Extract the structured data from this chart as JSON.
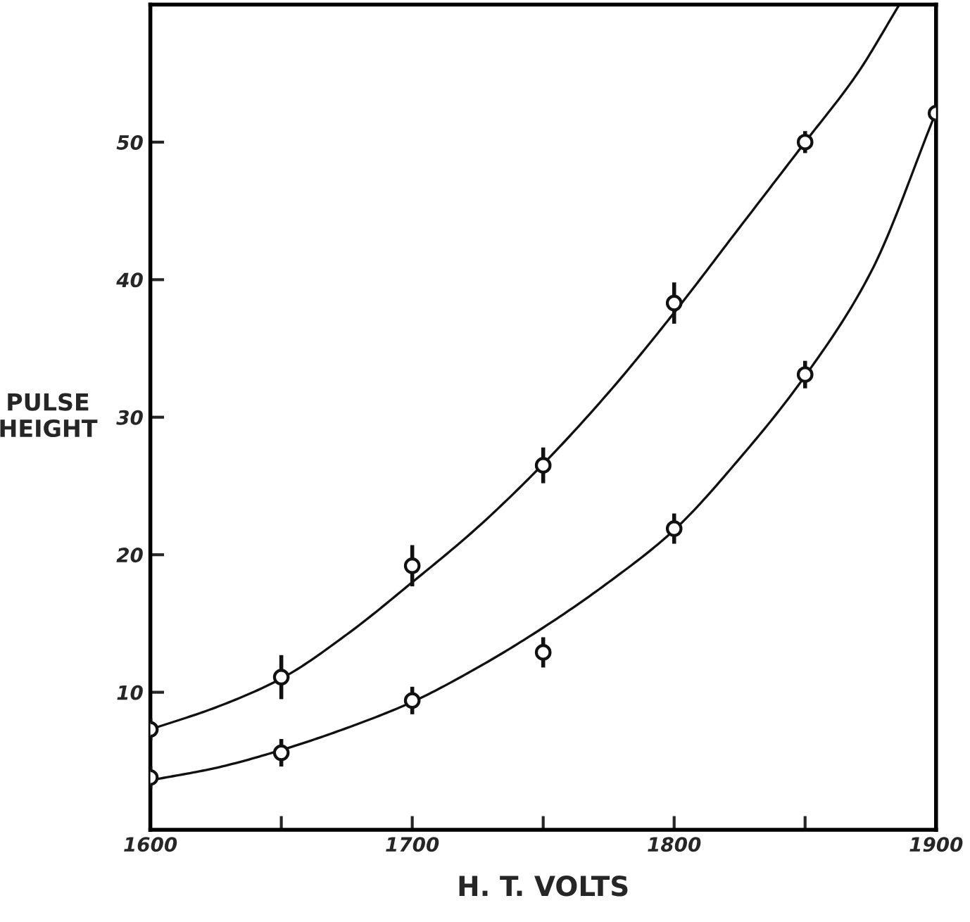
{
  "chart_data": {
    "type": "scatter",
    "xlabel": "H. T. VOLTS",
    "ylabel": "PULSE\nHEIGHT",
    "xlim": [
      1600,
      1900
    ],
    "ylim": [
      0,
      60
    ],
    "xticks": [
      1600,
      {
        "value": 1650,
        "label": null
      },
      1700,
      {
        "value": 1750,
        "label": null
      },
      1800,
      {
        "value": 1850,
        "label": null
      },
      1900
    ],
    "yticks": [
      10,
      20,
      30,
      40,
      50
    ],
    "grid": false,
    "series": [
      {
        "marker": "circle",
        "color": "#111111",
        "x": [
          1600,
          1650,
          1700,
          1750,
          1800,
          1850
        ],
        "values": [
          7.3,
          11.1,
          19.2,
          26.5,
          38.3,
          50.0
        ],
        "errors": [
          0.8,
          1.6,
          1.5,
          1.3,
          1.5,
          0.8
        ]
      },
      {
        "marker": "circle",
        "color": "#111111",
        "x": [
          1600,
          1650,
          1700,
          1750,
          1800,
          1850,
          1900
        ],
        "values": [
          3.8,
          5.6,
          9.4,
          12.9,
          21.9,
          33.1,
          52.1
        ],
        "errors": [
          0.8,
          1.0,
          1.0,
          1.1,
          1.1,
          1.0,
          0.6
        ]
      },
      {
        "type": "line",
        "color": "#111111",
        "x": [
          1600,
          1625,
          1650,
          1675,
          1700,
          1725,
          1750,
          1775,
          1800,
          1825,
          1850,
          1870,
          1886
        ],
        "values": [
          7.3,
          8.9,
          11.0,
          14.2,
          18.0,
          22.0,
          26.6,
          31.8,
          37.6,
          43.8,
          50.0,
          55.0,
          60.0
        ]
      },
      {
        "type": "line",
        "color": "#111111",
        "x": [
          1600,
          1625,
          1650,
          1675,
          1700,
          1725,
          1750,
          1775,
          1800,
          1825,
          1850,
          1875,
          1900
        ],
        "values": [
          3.6,
          4.5,
          5.8,
          7.4,
          9.3,
          11.8,
          14.7,
          18.0,
          21.8,
          27.0,
          33.0,
          40.5,
          52.2
        ]
      }
    ]
  }
}
